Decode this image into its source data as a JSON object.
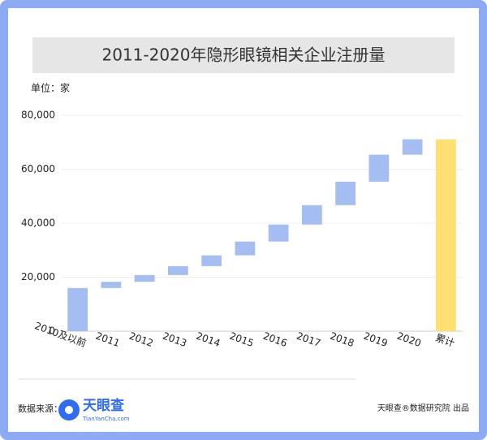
{
  "chart_data": {
    "type": "waterfall",
    "title": "2011-2020年隐形眼镜相关企业注册量",
    "unit_label": "单位：家",
    "categories": [
      "2010及以前",
      "2011",
      "2012",
      "2013",
      "2014",
      "2015",
      "2016",
      "2017",
      "2018",
      "2019",
      "2020",
      "累计"
    ],
    "values": [
      16000,
      2300,
      2500,
      3300,
      4000,
      5100,
      6300,
      7200,
      8700,
      10000,
      5700,
      71100
    ],
    "color": "#a4bdf3",
    "total_color": "#fddf72",
    "ylim": [
      0,
      80000
    ],
    "yticks": [
      0,
      {
        "value": 20000,
        "label": "20,000"
      },
      {
        "value": 40000,
        "label": "40,000"
      },
      {
        "value": 60000,
        "label": "60,000"
      },
      {
        "value": 80000,
        "label": "80,000"
      }
    ],
    "grid": true
  },
  "footer": {
    "source_label": "数据来源：",
    "logo": "天眼查",
    "logo_sub": "TianYanCha.com",
    "credit": "天眼查®数据研究院 出品"
  }
}
